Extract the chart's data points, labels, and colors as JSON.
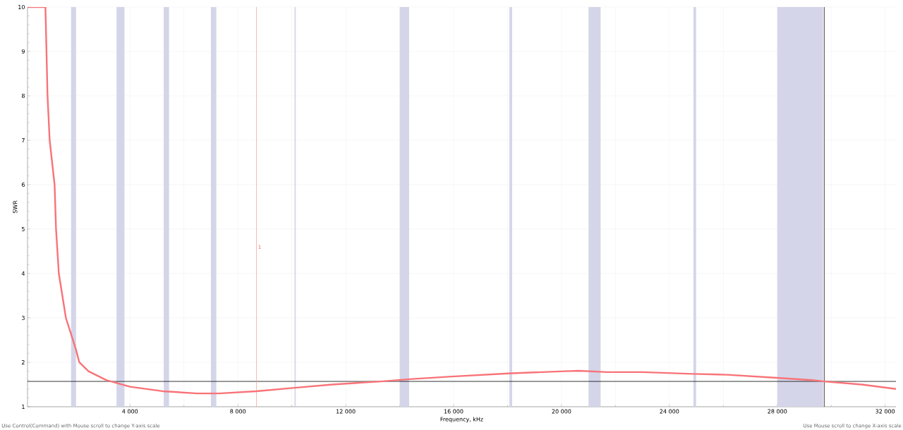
{
  "chart_data": {
    "type": "line",
    "xlabel": "Frequency, kHz",
    "ylabel": "SWR",
    "x": [
      200,
      840,
      864,
      942,
      1021,
      1204,
      1257,
      1361,
      1623,
      1990,
      2120,
      2460,
      3115,
      4000,
      5200,
      6500,
      7300,
      8690,
      10180,
      11500,
      13300,
      14370,
      15940,
      18040,
      20130,
      20650,
      21700,
      23000,
      24840,
      26150,
      27980,
      29290,
      29740,
      31130,
      32400
    ],
    "series": [
      {
        "color": "#f87378",
        "values": [
          10,
          10,
          10,
          8.0,
          7.0,
          6.0,
          5.0,
          4.0,
          3.0,
          2.3,
          2.0,
          1.8,
          1.6,
          1.45,
          1.35,
          1.3,
          1.3,
          1.35,
          1.43,
          1.5,
          1.57,
          1.62,
          1.68,
          1.75,
          1.8,
          1.81,
          1.78,
          1.78,
          1.74,
          1.72,
          1.65,
          1.6,
          1.57,
          1.5,
          1.4
        ]
      }
    ],
    "xlim": [
      200,
      32400
    ],
    "ylim": [
      1,
      10
    ],
    "xticks": [
      {
        "value": 4000,
        "label": "4 000"
      },
      {
        "value": 8000,
        "label": "8 000"
      },
      {
        "value": 12000,
        "label": "12 000"
      },
      {
        "value": 16000,
        "label": "16 000"
      },
      {
        "value": 20000,
        "label": "20 000"
      },
      {
        "value": 24000,
        "label": "24 000"
      },
      {
        "value": 28000,
        "label": "28 000"
      },
      {
        "value": 32000,
        "label": "32 000"
      }
    ],
    "yticks": [
      1,
      2,
      3,
      4,
      5,
      6,
      7,
      8,
      9,
      10
    ],
    "grid": true,
    "bands": [
      {
        "axis": "x",
        "from": 1810,
        "to": 2000,
        "color": "#d4d5e8"
      },
      {
        "axis": "x",
        "from": 3500,
        "to": 3800,
        "color": "#d4d5e8"
      },
      {
        "axis": "x",
        "from": 5250,
        "to": 5450,
        "color": "#d4d5e8"
      },
      {
        "axis": "x",
        "from": 7000,
        "to": 7200,
        "color": "#d4d5e8"
      },
      {
        "axis": "x",
        "from": 10100,
        "to": 10150,
        "color": "#d4d5e8"
      },
      {
        "axis": "x",
        "from": 14000,
        "to": 14350,
        "color": "#d4d5e8"
      },
      {
        "axis": "x",
        "from": 18068,
        "to": 18168,
        "color": "#d4d5e8"
      },
      {
        "axis": "x",
        "from": 21000,
        "to": 21450,
        "color": "#d4d5e8"
      },
      {
        "axis": "x",
        "from": 24890,
        "to": 24990,
        "color": "#d4d5e8"
      },
      {
        "axis": "x",
        "from": 28000,
        "to": 29700,
        "color": "#d4d5e8"
      }
    ],
    "ref_lines": [
      {
        "axis": "y",
        "value": 1.57,
        "color": "#000000"
      },
      {
        "axis": "x",
        "value": 29740,
        "color": "#000000"
      },
      {
        "axis": "x",
        "value": 8690,
        "color": "#f7a0a0"
      }
    ],
    "annotations": [
      {
        "text": "1",
        "x": 8690,
        "y": 4.6
      },
      "Use Control(Command) with Mouse scroll to change Y-axis scale",
      "Use Mouse scroll to change X-axis scale"
    ]
  }
}
